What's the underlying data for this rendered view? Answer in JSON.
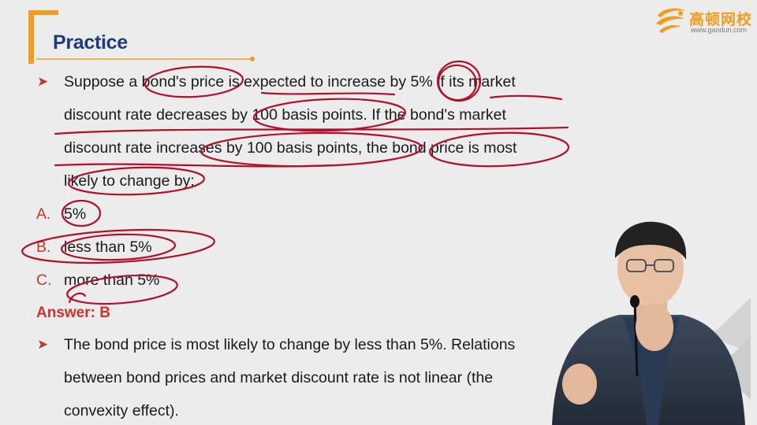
{
  "header": {
    "title": "Practice",
    "logo_cn": "高顿网校",
    "logo_url": "www.gaodun.com"
  },
  "question": {
    "bullet": "➤",
    "lines": [
      "Suppose a bond's price is expected to increase by 5% if its market",
      "discount rate decreases by 100 basis points. If the bond's market",
      "discount rate increases by 100 basis points, the bond price is most",
      "likely to change by:"
    ]
  },
  "options": [
    {
      "letter": "A.",
      "text": "5%"
    },
    {
      "letter": "B.",
      "text": "less than 5%"
    },
    {
      "letter": "C.",
      "text": "more than 5%"
    }
  ],
  "answer": "Answer: B",
  "explanation": {
    "bullet": "➤",
    "lines": [
      "The bond price is most likely to change by less than 5%. Relations",
      "between bond prices and market discount rate is not linear (the",
      "convexity effect)."
    ]
  },
  "colors": {
    "accent": "#f29c1f",
    "title": "#1c3d7a",
    "answer": "#d0312d",
    "ink": "#b0102a",
    "background": "#ececec"
  },
  "icons": {
    "bullet": "arrowhead-bullet-icon",
    "logo": "gaodun-logo-icon"
  }
}
